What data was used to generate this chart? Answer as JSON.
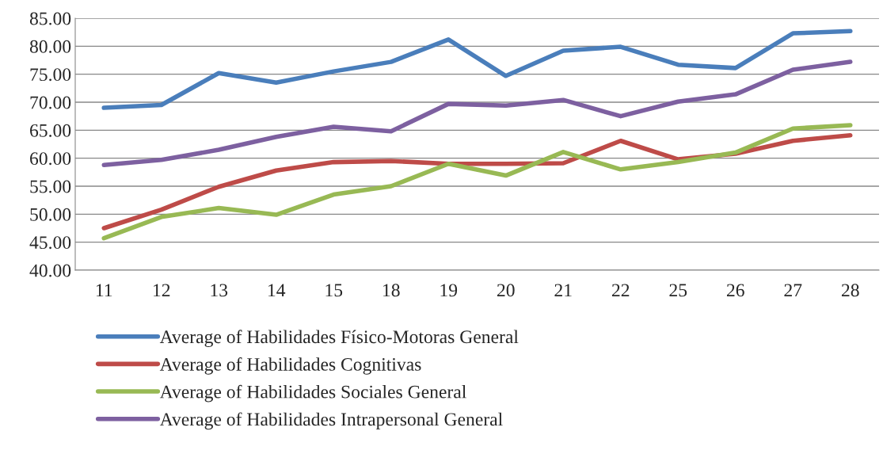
{
  "chart_data": {
    "type": "line",
    "categories": [
      "11",
      "12",
      "13",
      "14",
      "15",
      "18",
      "19",
      "20",
      "21",
      "22",
      "25",
      "26",
      "27",
      "28"
    ],
    "series": [
      {
        "name": "Average of Habilidades Físico-Motoras General",
        "color": "#4a7ebb",
        "values": [
          69.0,
          69.5,
          75.2,
          73.5,
          75.5,
          77.2,
          81.2,
          74.7,
          79.2,
          79.9,
          76.7,
          76.1,
          82.3,
          82.7
        ]
      },
      {
        "name": "Average of Habilidades Cognitivas",
        "color": "#be4b48",
        "values": [
          47.5,
          50.8,
          54.9,
          57.8,
          59.3,
          59.5,
          59.0,
          59.0,
          59.1,
          63.1,
          59.8,
          60.8,
          63.1,
          64.1
        ]
      },
      {
        "name": "Average of Habilidades Sociales General",
        "color": "#98b954",
        "values": [
          45.7,
          49.5,
          51.1,
          49.9,
          53.5,
          55.0,
          59.0,
          56.9,
          61.1,
          58.0,
          59.3,
          61.0,
          65.3,
          65.9
        ]
      },
      {
        "name": "Average of Habilidades Intrapersonal General",
        "color": "#7d60a0",
        "values": [
          58.8,
          59.7,
          61.5,
          63.8,
          65.6,
          64.8,
          69.7,
          69.4,
          70.4,
          67.5,
          70.1,
          71.4,
          75.8,
          77.2
        ]
      }
    ],
    "ylim": [
      40,
      85
    ],
    "yticks": [
      {
        "value": 40,
        "label": "40.00"
      },
      {
        "value": 45,
        "label": "45.00"
      },
      {
        "value": 50,
        "label": "50.00"
      },
      {
        "value": 55,
        "label": "55.00"
      },
      {
        "value": 60,
        "label": "60.00"
      },
      {
        "value": 65,
        "label": "65.00"
      },
      {
        "value": 70,
        "label": "70.00"
      },
      {
        "value": 75,
        "label": "75.00"
      },
      {
        "value": 80,
        "label": "80.00"
      },
      {
        "value": 85,
        "label": "85.00"
      }
    ],
    "grid": "y",
    "legend": "bottom",
    "marker": "none",
    "line_style": "solid"
  }
}
